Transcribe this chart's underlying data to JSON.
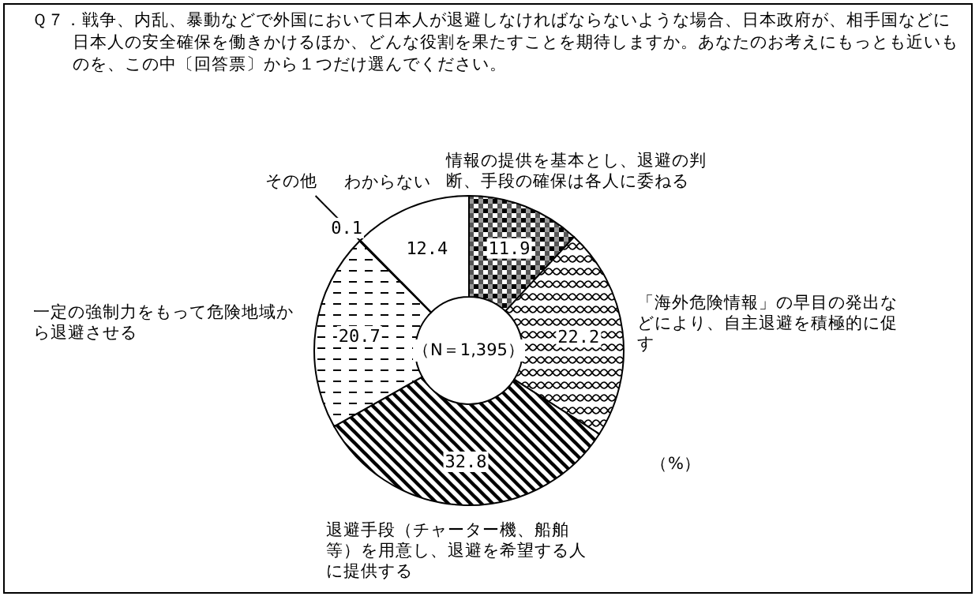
{
  "chart_data": {
    "type": "donut",
    "title": "Ｑ７．戦争、内乱、暴動などで外国において日本人が退避しなければならないような場合、日本政府が、相手国などに日本人の安全確保を働きかけるほか、どんな役割を果たすことを期待しますか。あなたのお考えにもっとも近いものを、この中〔回答票〕から１つだけ選んでください。",
    "categories": [
      "情報の提供を基本とし、退避の判断、手段の確保は各人に委ねる",
      "「海外危険情報」の早目の発出などにより、自主退避を積極的に促す",
      "退避手段（チャーター機、船舶等）を用意し、退避を希望する人に提供する",
      "一定の強制力をもって危険地域から退避させる",
      "その他",
      "わからない"
    ],
    "values": [
      11.9,
      22.2,
      32.8,
      20.7,
      0.1,
      12.4
    ],
    "data_labels": true,
    "annotations": [
      "（N＝1,395）",
      "（%）"
    ]
  }
}
